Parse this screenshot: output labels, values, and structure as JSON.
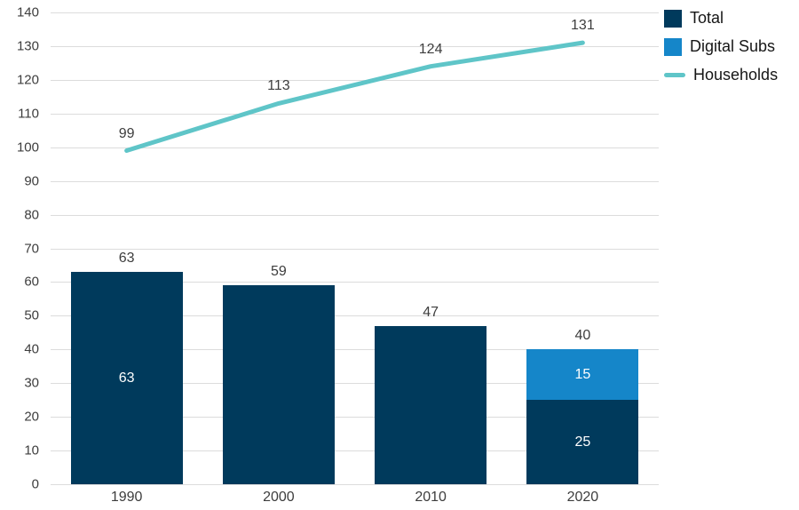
{
  "chart_data": {
    "type": "bar",
    "subtype": "stacked-bar-with-line",
    "categories": [
      "1990",
      "2000",
      "2010",
      "2020"
    ],
    "series": [
      {
        "name": "Total",
        "type": "bar",
        "color": "#003a5c",
        "values": [
          63,
          59,
          47,
          25
        ]
      },
      {
        "name": "Digital Subs",
        "type": "bar",
        "color": "#1586c9",
        "values": [
          0,
          0,
          0,
          15
        ]
      },
      {
        "name": "Households",
        "type": "line",
        "color": "#5fc5c8",
        "values": [
          99,
          113,
          124,
          131
        ]
      }
    ],
    "bar_total_labels": [
      "63",
      "59",
      "47",
      "40"
    ],
    "bar_segment_labels": [
      [
        "63",
        "",
        "",
        "25"
      ],
      [
        "",
        "",
        "",
        "15"
      ]
    ],
    "line_point_labels": [
      "99",
      "113",
      "124",
      "131"
    ],
    "title": "",
    "xlabel": "",
    "ylabel": "",
    "ylim": [
      0,
      140
    ],
    "ytick_step": 10,
    "grid": true,
    "legend_position": "top-right"
  },
  "legend": {
    "items": [
      {
        "label": "Total"
      },
      {
        "label": "Digital Subs"
      },
      {
        "label": "Households"
      }
    ]
  },
  "colors": {
    "grid": "#dcdcdc",
    "axis_text": "#3d3d3d",
    "background": "#ffffff"
  }
}
